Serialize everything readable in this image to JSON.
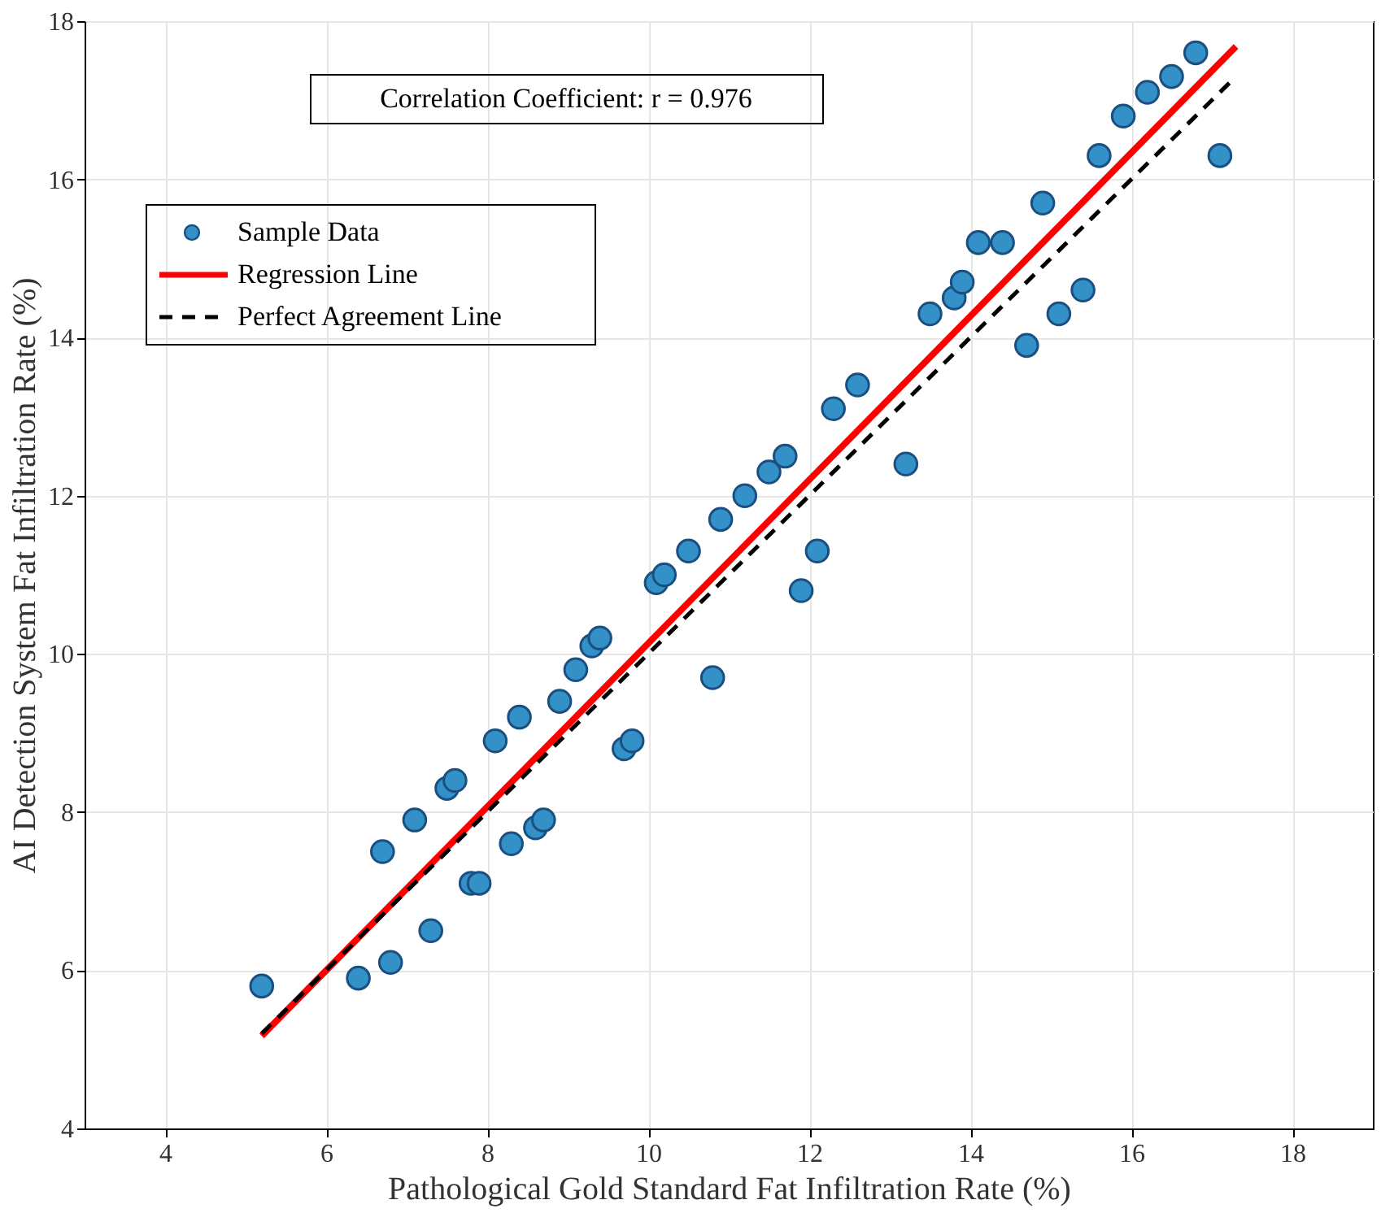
{
  "chart_data": {
    "type": "scatter",
    "xlabel": "Pathological Gold Standard Fat Infiltration Rate (%)",
    "ylabel": "AI Detection System Fat Infiltration Rate (%)",
    "xlim": [
      3,
      19
    ],
    "ylim": [
      4,
      18
    ],
    "xticks": [
      4,
      6,
      8,
      10,
      12,
      14,
      16,
      18
    ],
    "yticks": [
      4,
      6,
      8,
      10,
      12,
      14,
      16,
      18
    ],
    "grid": true,
    "legend": "top left",
    "annotations": [
      "Correlation Coefficient: r = 0.976"
    ],
    "series": [
      {
        "name": "Sample Data",
        "type": "scatter",
        "marker": "circle",
        "color": "#3391c8",
        "x": [
          5.2,
          6.4,
          6.8,
          7.3,
          6.7,
          7.1,
          7.5,
          7.6,
          7.8,
          7.9,
          8.1,
          8.4,
          8.3,
          8.6,
          8.7,
          8.9,
          9.1,
          9.3,
          9.4,
          9.7,
          9.8,
          10.1,
          10.2,
          10.5,
          10.8,
          10.9,
          11.2,
          11.5,
          11.7,
          11.9,
          12.1,
          12.3,
          12.6,
          13.2,
          13.5,
          13.8,
          13.9,
          14.1,
          14.4,
          14.7,
          14.9,
          15.1,
          15.4,
          15.6,
          15.9,
          16.2,
          16.5,
          16.8,
          17.1
        ],
        "values": [
          5.8,
          5.9,
          6.1,
          6.5,
          7.5,
          7.9,
          8.3,
          8.4,
          7.1,
          7.1,
          8.9,
          9.2,
          7.6,
          7.8,
          7.9,
          9.4,
          9.8,
          10.1,
          10.2,
          8.8,
          8.9,
          10.9,
          11.0,
          11.3,
          9.7,
          11.7,
          12.0,
          12.3,
          12.5,
          10.8,
          11.3,
          13.1,
          13.4,
          12.4,
          14.3,
          14.5,
          14.7,
          15.2,
          15.2,
          13.9,
          15.7,
          14.3,
          14.6,
          16.3,
          16.8,
          17.1,
          17.3,
          17.6,
          16.3
        ]
      },
      {
        "name": "Regression Line",
        "type": "line",
        "color": "#ff0000",
        "line_style": "solid",
        "x": [
          5.2,
          17.3
        ],
        "values": [
          5.17,
          17.68
        ]
      },
      {
        "name": "Perfect Agreement Line",
        "type": "line",
        "color": "#000000",
        "line_style": "dashed",
        "x": [
          5.2,
          17.3
        ],
        "values": [
          5.2,
          17.3
        ]
      }
    ]
  }
}
